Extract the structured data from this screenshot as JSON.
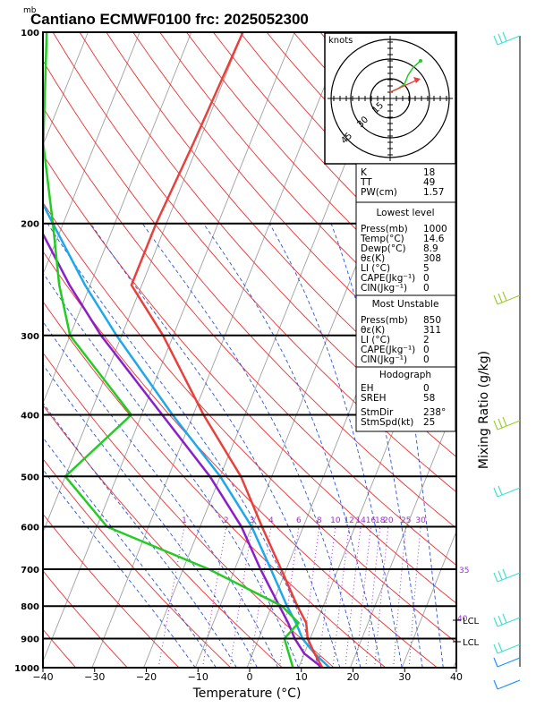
{
  "chart_data": {
    "type": "skew-t",
    "title": "Cantiano ECMWF0100  frc: 2025052300",
    "pressure_unit": "mb",
    "xlabel": "Temperature (°C)",
    "ylabel_right": "Mixing Ratio (g/kg)",
    "xlim": [
      -40,
      40
    ],
    "ylim": [
      1000,
      100
    ],
    "x_ticks": [
      "−40",
      "−30",
      "−20",
      "−10",
      "0",
      "10",
      "20",
      "30",
      "40"
    ],
    "p_ticks": [
      100,
      200,
      300,
      400,
      500,
      600,
      700,
      800,
      900,
      1000
    ],
    "mixing_ratio_labels": [
      "1",
      "2",
      "3",
      "4",
      "6",
      "8",
      "10",
      "12",
      "14",
      "16",
      "18",
      "20",
      "25",
      "30"
    ],
    "side_labels": [
      "35",
      "40"
    ],
    "lcl_labels": [
      "LCL",
      "LCL"
    ],
    "temperature": [
      [
        1000,
        14.6
      ],
      [
        950,
        12
      ],
      [
        900,
        9.5
      ],
      [
        850,
        8
      ],
      [
        800,
        5
      ],
      [
        700,
        -1
      ],
      [
        600,
        -8
      ],
      [
        500,
        -16
      ],
      [
        400,
        -28
      ],
      [
        300,
        -42
      ],
      [
        250,
        -52
      ],
      [
        200,
        -52
      ],
      [
        150,
        -51
      ],
      [
        100,
        -50
      ]
    ],
    "dewpoint": [
      [
        1000,
        8.9
      ],
      [
        950,
        7
      ],
      [
        900,
        5
      ],
      [
        850,
        6.5
      ],
      [
        800,
        2
      ],
      [
        700,
        -15
      ],
      [
        600,
        -38
      ],
      [
        500,
        -50
      ],
      [
        400,
        -42
      ],
      [
        300,
        -60
      ],
      [
        250,
        -66
      ],
      [
        200,
        -72
      ],
      [
        150,
        -80
      ],
      [
        100,
        -88
      ]
    ],
    "parcel": [
      [
        1000,
        14.6
      ],
      [
        950,
        10
      ],
      [
        900,
        7
      ],
      [
        850,
        4.5
      ],
      [
        800,
        1.5
      ],
      [
        700,
        -5
      ],
      [
        600,
        -12
      ],
      [
        500,
        -22
      ],
      [
        400,
        -36
      ],
      [
        300,
        -54
      ],
      [
        250,
        -64
      ],
      [
        200,
        -75
      ],
      [
        150,
        -90
      ],
      [
        100,
        -110
      ]
    ],
    "virtual_parcel": [
      [
        1000,
        16
      ],
      [
        950,
        12
      ],
      [
        900,
        8.5
      ],
      [
        850,
        6
      ],
      [
        800,
        3
      ],
      [
        700,
        -3
      ],
      [
        600,
        -10
      ],
      [
        500,
        -20
      ],
      [
        400,
        -34
      ],
      [
        300,
        -51
      ],
      [
        250,
        -61
      ],
      [
        200,
        -72
      ],
      [
        150,
        -86
      ],
      [
        100,
        -106
      ]
    ],
    "hodograph": {
      "unit": "knots",
      "ring_labels": [
        "15",
        "30",
        "45"
      ]
    },
    "table": {
      "top": [
        [
          "K",
          "18"
        ],
        [
          "TT",
          "49"
        ],
        [
          "PW(cm)",
          "1.57"
        ]
      ],
      "lowest_title": "Lowest level",
      "lowest": [
        [
          "Press(mb)",
          "1000"
        ],
        [
          "Temp(°C)",
          "14.6"
        ],
        [
          "Dewp(°C)",
          "8.9"
        ],
        [
          "θε(K)",
          "308"
        ],
        [
          "LI (°C)",
          "5"
        ],
        [
          "CAPE(Jkg⁻¹)",
          "0"
        ],
        [
          "CIN(Jkg⁻¹)",
          "0"
        ]
      ],
      "unstable_title": "Most Unstable",
      "unstable": [
        [
          "Press(mb)",
          "850"
        ],
        [
          "θε(K)",
          "311"
        ],
        [
          "LI (°C)",
          "2"
        ],
        [
          "CAPE(Jkg⁻¹)",
          "0"
        ],
        [
          "CIN(Jkg⁻¹)",
          "0"
        ]
      ],
      "hodo_title": "Hodograph",
      "hodo": [
        [
          "EH",
          "0"
        ],
        [
          "SREH",
          "58"
        ],
        [
          "StmDir",
          "238°"
        ],
        [
          "StmSpd(kt)",
          "25"
        ]
      ]
    },
    "colors": {
      "temperature": "#e8413c",
      "dewpoint": "#22cc22",
      "parcel": "#8a1fc9",
      "virtual": "#1ea8ea",
      "isotherm": "#a0a0a0",
      "dry_adiabat": "#ee3030",
      "moist_adiabat": "#2a55d8",
      "mixing_ratio": "#9b30c8"
    }
  }
}
